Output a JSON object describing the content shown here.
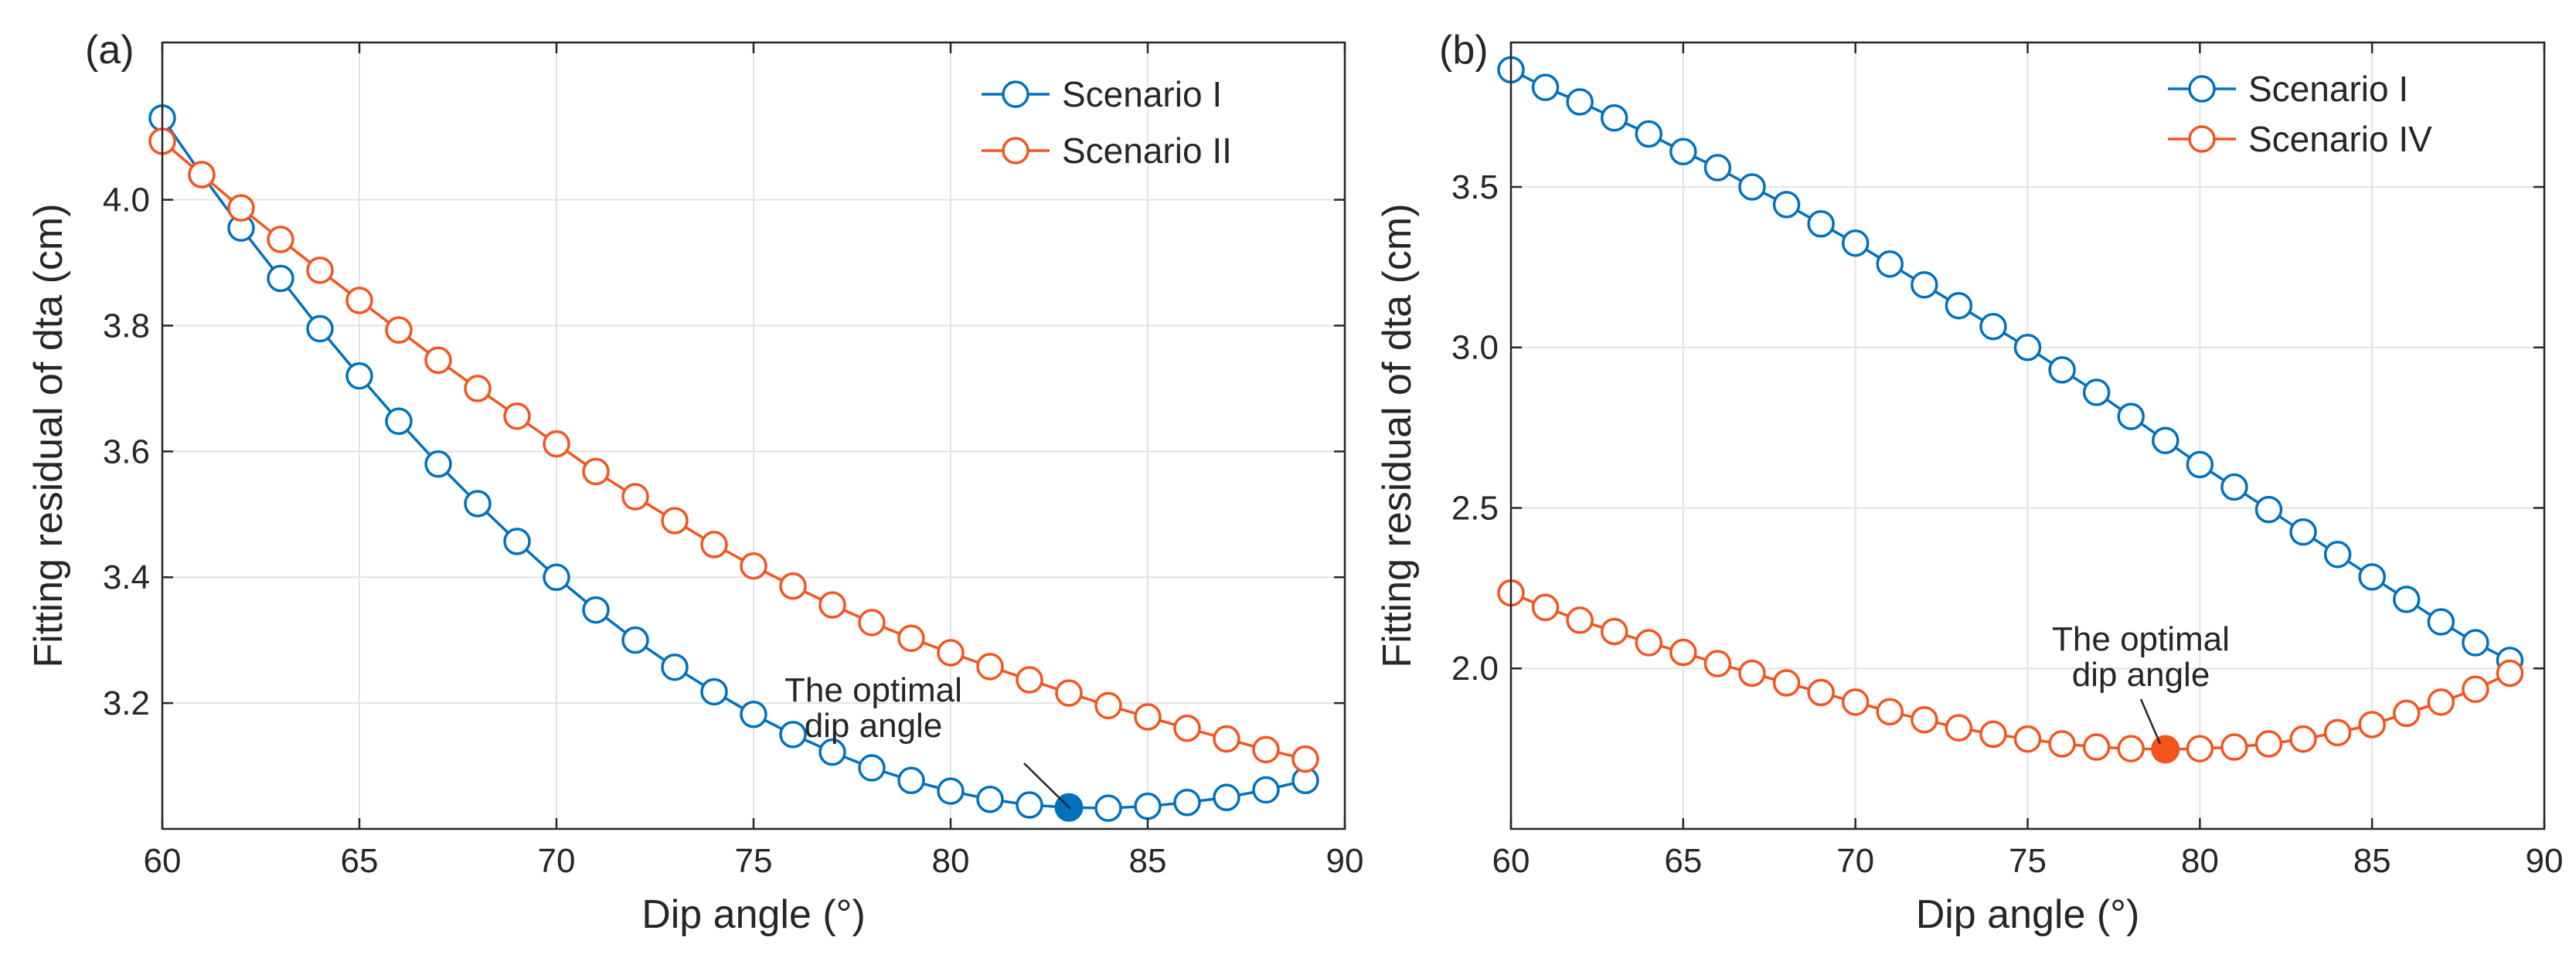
{
  "colors": {
    "scenario_blue": "#0072BD",
    "scenario_orange": "#F5541E"
  },
  "chart_data": [
    {
      "panel_label": "(a)",
      "type": "line",
      "xlabel": "Dip angle (°)",
      "ylabel": "Fitting residual of dta (cm)",
      "xlim": [
        60,
        90
      ],
      "ylim": [
        3.0,
        4.25
      ],
      "xticks": [
        60,
        65,
        70,
        75,
        80,
        85,
        90
      ],
      "xtick_labels": [
        "60",
        "65",
        "70",
        "75",
        "80",
        "85",
        "90"
      ],
      "yticks": [
        3.2,
        3.4,
        3.6,
        3.8,
        4.0
      ],
      "ytick_labels": [
        "3.2",
        "3.4",
        "3.6",
        "3.8",
        "4.0"
      ],
      "grid": true,
      "legend_position": "top-right",
      "x": [
        60,
        61,
        62,
        63,
        64,
        65,
        66,
        67,
        68,
        69,
        70,
        71,
        72,
        73,
        74,
        75,
        76,
        77,
        78,
        79,
        80,
        81,
        82,
        83,
        84,
        85,
        86,
        87,
        88,
        89
      ],
      "series": [
        {
          "name": "Scenario I",
          "color": "#0072BD",
          "values": [
            4.13,
            4.04,
            3.955,
            3.875,
            3.795,
            3.72,
            3.648,
            3.58,
            3.517,
            3.457,
            3.4,
            3.348,
            3.3,
            3.257,
            3.218,
            3.182,
            3.15,
            3.122,
            3.097,
            3.077,
            3.06,
            3.047,
            3.038,
            3.034,
            3.033,
            3.036,
            3.042,
            3.05,
            3.062,
            3.077
          ]
        },
        {
          "name": "Scenario II",
          "color": "#F5541E",
          "values": [
            4.093,
            4.04,
            3.987,
            3.937,
            3.888,
            3.84,
            3.793,
            3.745,
            3.7,
            3.656,
            3.612,
            3.568,
            3.528,
            3.49,
            3.452,
            3.418,
            3.386,
            3.356,
            3.328,
            3.303,
            3.28,
            3.258,
            3.237,
            3.216,
            3.196,
            3.178,
            3.16,
            3.143,
            3.126,
            3.111
          ]
        }
      ],
      "highlight": {
        "series": "Scenario I",
        "x": 83,
        "y": 3.034,
        "color": "#0072BD"
      },
      "annotation": [
        "The optimal",
        "dip angle"
      ]
    },
    {
      "panel_label": "(b)",
      "type": "line",
      "xlabel": "Dip angle (°)",
      "ylabel": "Fitting residual of dta (cm)",
      "xlim": [
        60,
        90
      ],
      "ylim": [
        1.5,
        3.95
      ],
      "xticks": [
        60,
        65,
        70,
        75,
        80,
        85,
        90
      ],
      "xtick_labels": [
        "60",
        "65",
        "70",
        "75",
        "80",
        "85",
        "90"
      ],
      "yticks": [
        2.0,
        2.5,
        3.0,
        3.5
      ],
      "ytick_labels": [
        "2.0",
        "2.5",
        "3.0",
        "3.5"
      ],
      "grid": true,
      "legend_position": "top-right",
      "x": [
        60,
        61,
        62,
        63,
        64,
        65,
        66,
        67,
        68,
        69,
        70,
        71,
        72,
        73,
        74,
        75,
        76,
        77,
        78,
        79,
        80,
        81,
        82,
        83,
        84,
        85,
        86,
        87,
        88,
        89
      ],
      "series": [
        {
          "name": "Scenario I",
          "color": "#0072BD",
          "values": [
            3.865,
            3.81,
            3.765,
            3.715,
            3.665,
            3.61,
            3.56,
            3.5,
            3.445,
            3.385,
            3.325,
            3.26,
            3.195,
            3.13,
            3.065,
            3.0,
            2.93,
            2.86,
            2.785,
            2.71,
            2.635,
            2.565,
            2.495,
            2.425,
            2.355,
            2.285,
            2.215,
            2.145,
            2.08,
            2.025
          ]
        },
        {
          "name": "Scenario IV",
          "color": "#F5541E",
          "values": [
            2.235,
            2.19,
            2.15,
            2.115,
            2.08,
            2.05,
            2.015,
            1.985,
            1.955,
            1.925,
            1.895,
            1.865,
            1.84,
            1.815,
            1.795,
            1.78,
            1.765,
            1.755,
            1.75,
            1.748,
            1.75,
            1.755,
            1.765,
            1.78,
            1.8,
            1.825,
            1.86,
            1.895,
            1.935,
            1.985
          ]
        }
      ],
      "highlight": {
        "series": "Scenario IV",
        "x": 79,
        "y": 1.748,
        "color": "#F5541E"
      },
      "annotation": [
        "The optimal",
        "dip angle"
      ]
    }
  ]
}
